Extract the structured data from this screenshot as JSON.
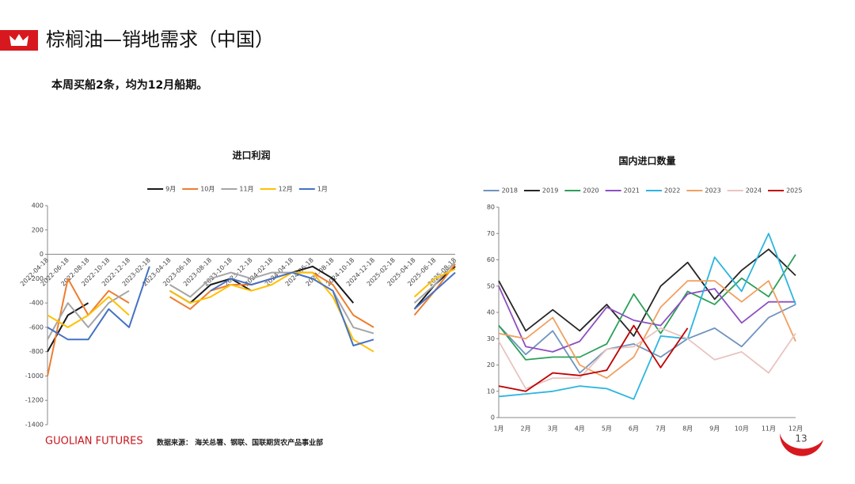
{
  "header": {
    "title": "棕榈油—销地需求（中国）",
    "subtitle": "本周买船2条，均为12月船期。"
  },
  "footer": {
    "brand": "GUOLIAN FUTURES",
    "source": "数据来源： 海关总署、钢联、国联期货农产品事业部",
    "page": "13"
  },
  "chart_data": [
    {
      "type": "line",
      "title": "进口利润",
      "categories": [
        "2022-04-18",
        "2022-06-18",
        "2022-08-18",
        "2022-10-18",
        "2022-12-18",
        "2023-02-18",
        "2023-04-18",
        "2023-06-18",
        "2023-08-18",
        "2023-10-18",
        "2023-12-18",
        "2024-02-18",
        "2024-04-18",
        "2024-06-18",
        "2024-08-18",
        "2024-10-18",
        "2024-12-18",
        "2025-02-18",
        "2025-04-18",
        "2025-06-18",
        "2025-08-18"
      ],
      "ylim": [
        -1400,
        400
      ],
      "yticks": [
        -1400,
        -1200,
        -1000,
        -800,
        -600,
        -400,
        -200,
        0,
        200,
        400
      ],
      "grid": false,
      "series": [
        {
          "name": "9月",
          "color": "#1a1a1a",
          "values": [
            -800,
            -500,
            -400,
            null,
            null,
            null,
            -300,
            -400,
            -250,
            -200,
            -300,
            null,
            -150,
            -100,
            -200,
            -400,
            null,
            null,
            -450,
            -250,
            -100
          ]
        },
        {
          "name": "10月",
          "color": "#ed7d31",
          "values": [
            -1000,
            -200,
            -500,
            -300,
            -400,
            null,
            -350,
            -450,
            -300,
            -250,
            -250,
            -200,
            -150,
            -150,
            -250,
            -500,
            -600,
            null,
            -500,
            -300,
            -80
          ]
        },
        {
          "name": "11月",
          "color": "#a5a5a5",
          "values": [
            -700,
            -400,
            -600,
            -400,
            -300,
            null,
            -250,
            -350,
            -200,
            -150,
            -200,
            -150,
            -150,
            -200,
            -300,
            -600,
            -650,
            null,
            -400,
            -250,
            -60
          ]
        },
        {
          "name": "12月",
          "color": "#ffc000",
          "values": [
            -500,
            -600,
            -500,
            -350,
            -500,
            null,
            -300,
            -400,
            -350,
            -250,
            -300,
            -250,
            -150,
            -150,
            -350,
            -700,
            -800,
            null,
            -350,
            -200,
            -120
          ]
        },
        {
          "name": "1月",
          "color": "#4472c4",
          "values": [
            -600,
            -700,
            -700,
            -450,
            -600,
            -100,
            null,
            null,
            -300,
            -200,
            -250,
            -200,
            -150,
            -200,
            -300,
            -750,
            -700,
            null,
            -450,
            -300,
            -150
          ]
        }
      ]
    },
    {
      "type": "line",
      "title": "国内进口数量",
      "categories": [
        "1月",
        "2月",
        "3月",
        "4月",
        "5月",
        "6月",
        "7月",
        "8月",
        "9月",
        "10月",
        "11月",
        "12月"
      ],
      "ylim": [
        0,
        80
      ],
      "yticks": [
        0,
        10,
        20,
        30,
        40,
        50,
        60,
        70,
        80
      ],
      "grid": false,
      "series": [
        {
          "name": "2018",
          "color": "#7093bf",
          "values": [
            35,
            24,
            33,
            17,
            26,
            28,
            23,
            30,
            34,
            27,
            38,
            43
          ]
        },
        {
          "name": "2019",
          "color": "#262626",
          "values": [
            52,
            33,
            41,
            33,
            43,
            31,
            50,
            59,
            45,
            56,
            64,
            54
          ]
        },
        {
          "name": "2020",
          "color": "#2ca05a",
          "values": [
            35,
            22,
            23,
            23,
            28,
            47,
            32,
            48,
            43,
            53,
            46,
            62
          ]
        },
        {
          "name": "2021",
          "color": "#8e4fc0",
          "values": [
            50,
            27,
            25,
            29,
            42,
            37,
            35,
            47,
            49,
            36,
            44,
            44
          ]
        },
        {
          "name": "2022",
          "color": "#2cb5e0",
          "values": [
            8,
            9,
            10,
            12,
            11,
            7,
            31,
            30,
            61,
            48,
            70,
            43
          ]
        },
        {
          "name": "2023",
          "color": "#f0a060",
          "values": [
            32,
            30,
            38,
            20,
            15,
            23,
            42,
            52,
            52,
            44,
            52,
            29
          ]
        },
        {
          "name": "2024",
          "color": "#e8c4c0",
          "values": [
            29,
            11,
            15,
            15,
            26,
            27,
            34,
            30,
            22,
            25,
            17,
            32
          ]
        },
        {
          "name": "2025",
          "color": "#c00000",
          "values": [
            12,
            10,
            17,
            16,
            18,
            35,
            19,
            34,
            null,
            null,
            null,
            null
          ]
        }
      ]
    }
  ]
}
